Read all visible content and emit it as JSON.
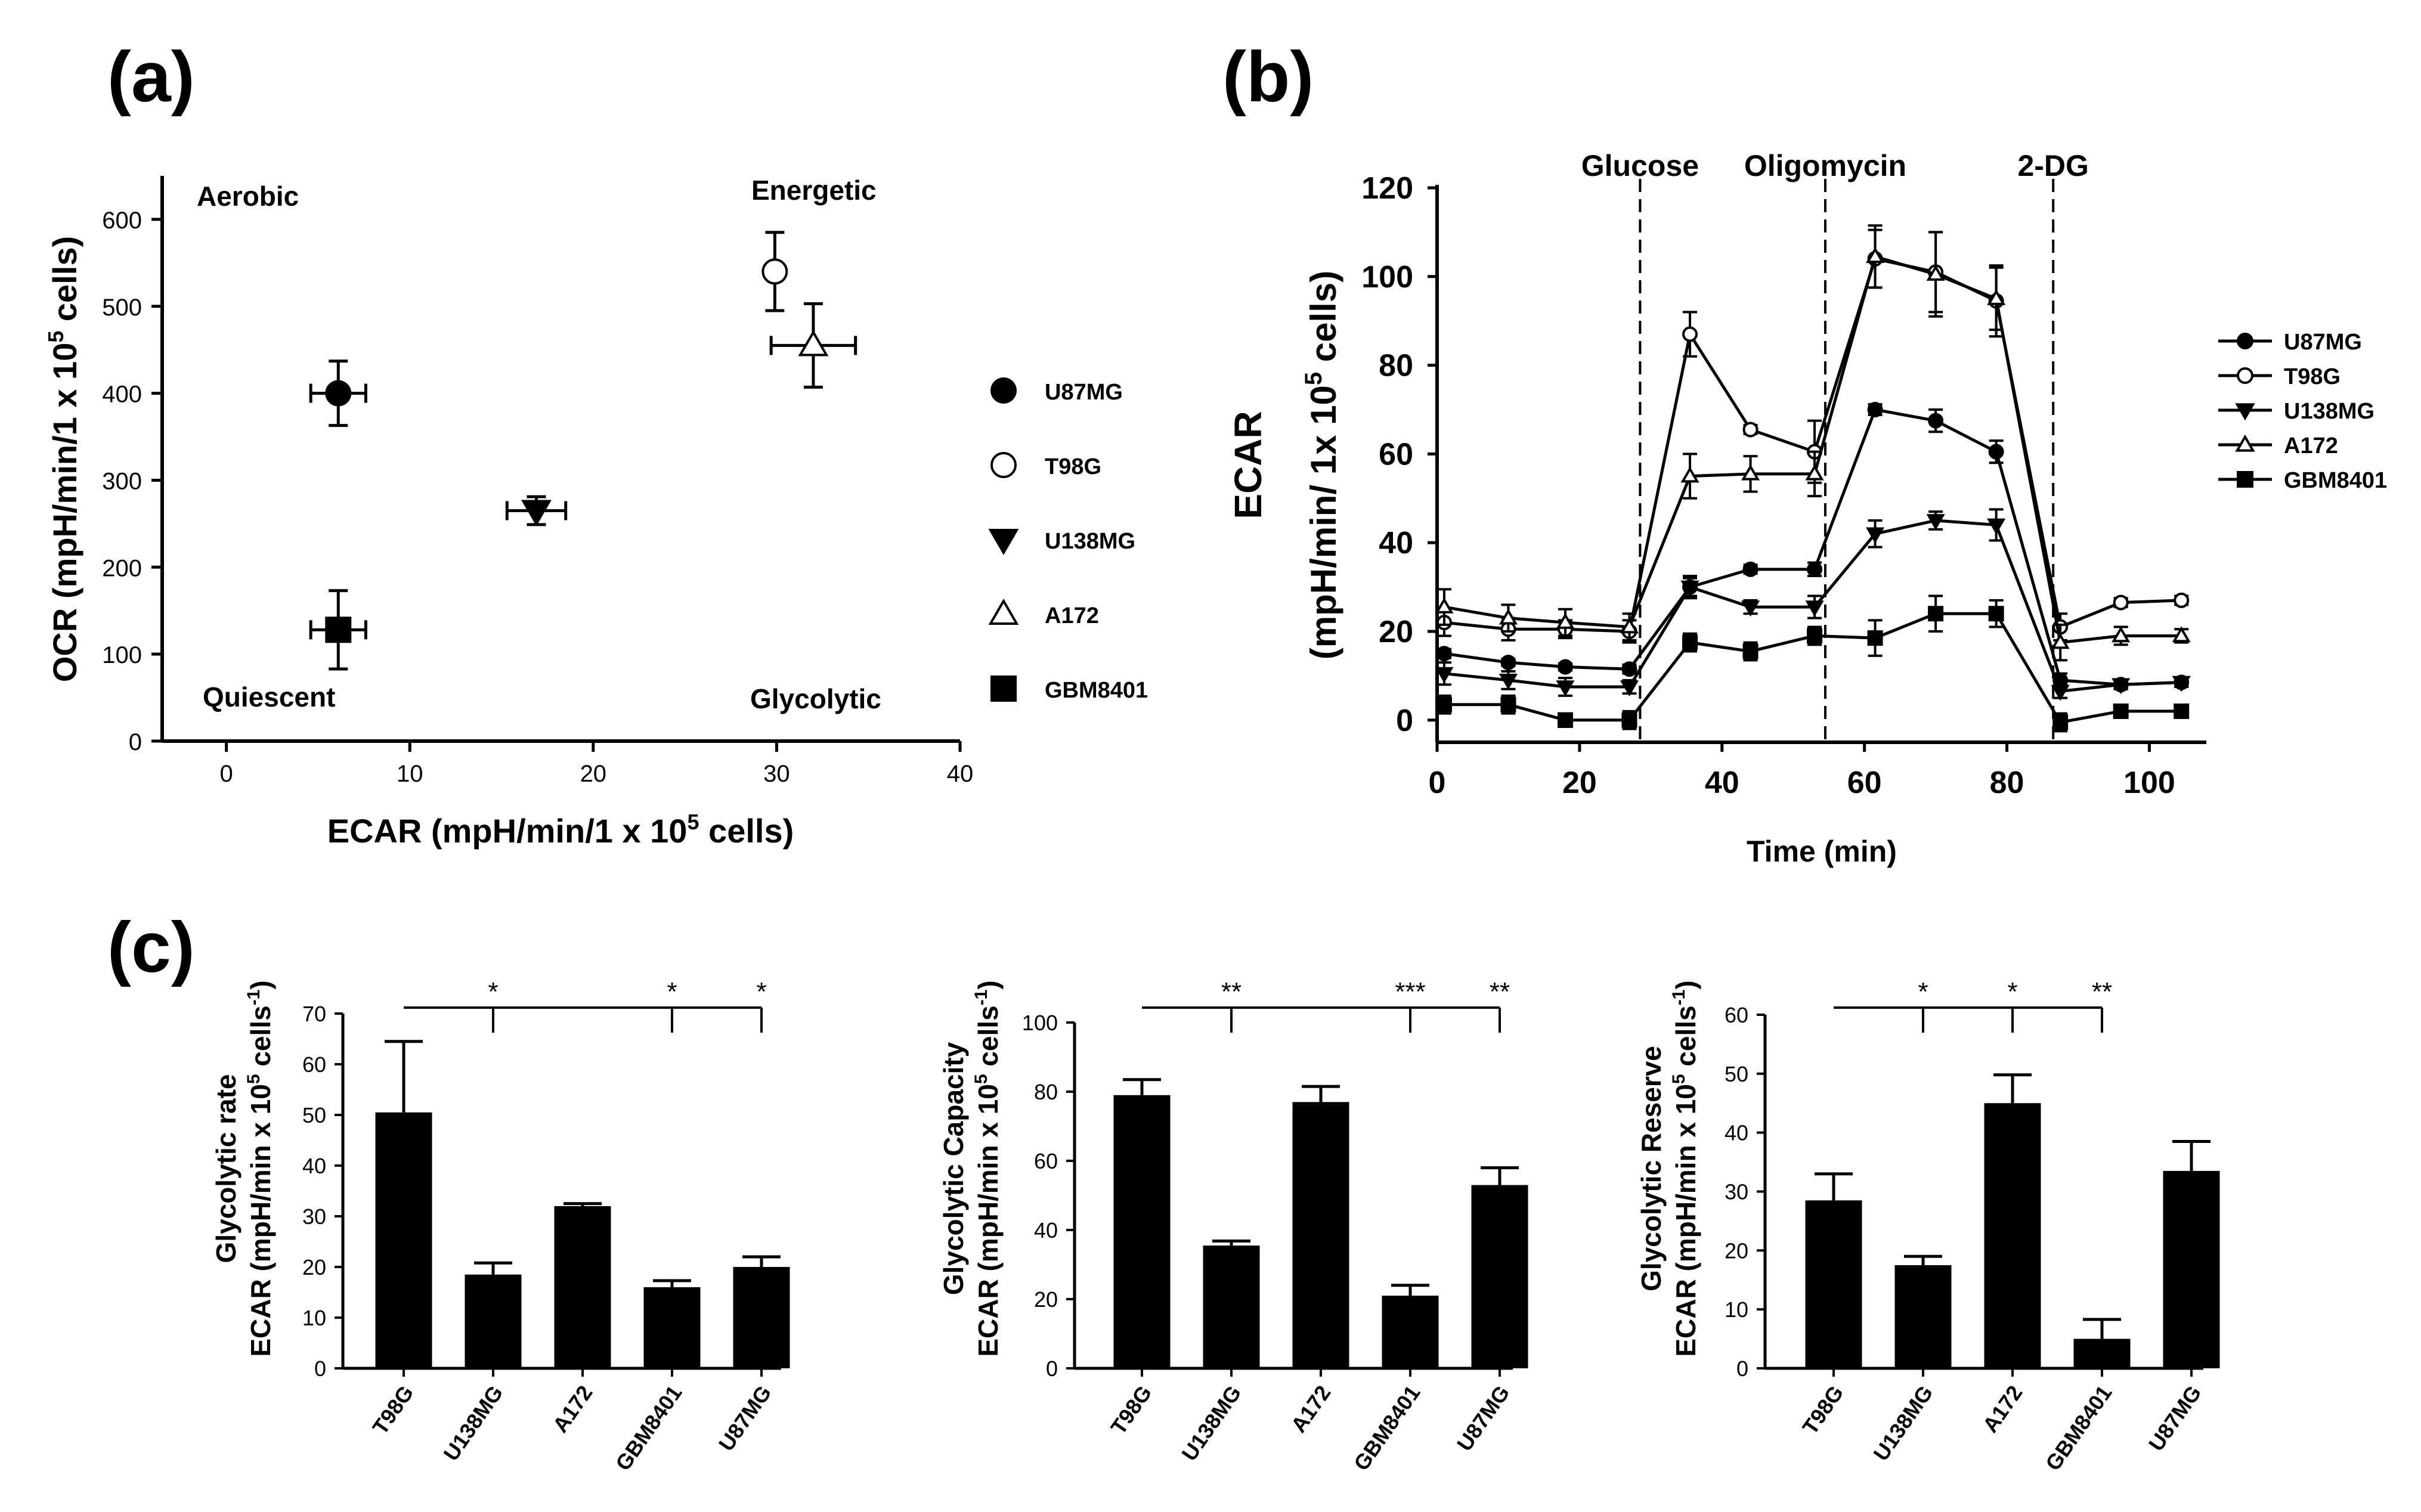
{
  "panel_labels": [
    "(a)",
    "(b)",
    "(c)"
  ],
  "chart_data": [
    {
      "id": "a",
      "type": "scatter",
      "xlabel_prefix": "ECAR (mpH/min/1 x 10",
      "xlabel_sup": "5",
      "xlabel_suffix": " cells)",
      "ylabel_prefix": "OCR (mpH/min/1 x 10",
      "ylabel_sup": "5",
      "ylabel_suffix": " cells)",
      "xlim": [
        -3.5,
        40
      ],
      "ylim": [
        0,
        650
      ],
      "xticks": [
        0,
        10,
        20,
        30,
        40
      ],
      "yticks": [
        0,
        100,
        200,
        300,
        400,
        500,
        600
      ],
      "quadrant_labels": [
        "Aerobic",
        "Energetic",
        "Quiescent",
        "Glycolytic"
      ],
      "legend": [
        {
          "name": "U87MG",
          "marker": "circle-filled"
        },
        {
          "name": "T98G",
          "marker": "circle-open"
        },
        {
          "name": "U138MG",
          "marker": "triangle-down-filled"
        },
        {
          "name": "A172",
          "marker": "triangle-up-open"
        },
        {
          "name": "GBM8401",
          "marker": "square-filled"
        }
      ],
      "points": [
        {
          "name": "U87MG",
          "x": 6.1,
          "y": 400,
          "xerr": 1.5,
          "yerr": 37,
          "marker": "circle-filled"
        },
        {
          "name": "T98G",
          "x": 29.9,
          "y": 540,
          "xerr": 0,
          "yerr": 45,
          "marker": "circle-open"
        },
        {
          "name": "U138MG",
          "x": 16.9,
          "y": 265,
          "xerr": 1.6,
          "yerr": 16,
          "marker": "triangle-down-filled"
        },
        {
          "name": "A172",
          "x": 32.0,
          "y": 455,
          "xerr": 2.3,
          "yerr": 48,
          "marker": "triangle-up-open"
        },
        {
          "name": "GBM8401",
          "x": 6.1,
          "y": 128,
          "xerr": 1.5,
          "yerr": 45,
          "marker": "square-filled"
        }
      ]
    },
    {
      "id": "b",
      "type": "line",
      "ylabel_line1": "ECAR",
      "ylabel_line2_prefix": "(mpH/min/ 1x 10",
      "ylabel_line2_sup": "5",
      "ylabel_line2_suffix": " cells)",
      "xlabel": "Time (min)",
      "xlim": [
        0,
        108
      ],
      "ylim": [
        -5,
        120
      ],
      "xticks": [
        0,
        20,
        40,
        60,
        80,
        100
      ],
      "yticks": [
        0,
        20,
        40,
        60,
        80,
        100,
        120
      ],
      "injections": [
        {
          "label": "Glucose",
          "x": 28.5
        },
        {
          "label": "Oligomycin",
          "x": 54.5
        },
        {
          "label": "2-DG",
          "x": 86.5
        }
      ],
      "x": [
        1,
        10,
        18,
        27,
        35.5,
        44,
        53,
        61.5,
        70,
        78.5,
        87.5,
        96,
        104.5
      ],
      "series": [
        {
          "name": "U87MG",
          "marker": "circle-filled",
          "values": [
            15,
            13,
            12,
            11.5,
            30,
            34,
            34,
            70,
            67.5,
            60.5,
            9,
            8,
            8.5
          ],
          "err": [
            1,
            0.8,
            0.8,
            1,
            2,
            1,
            1.5,
            1.2,
            2.5,
            2.5,
            1.5,
            1,
            1
          ]
        },
        {
          "name": "T98G",
          "marker": "circle-open",
          "values": [
            22,
            20.5,
            20.5,
            20,
            87,
            65.5,
            60.5,
            104,
            101,
            94.5,
            21,
            26.5,
            27
          ],
          "err": [
            3,
            2.5,
            2,
            2.5,
            5,
            1,
            7,
            6.5,
            9,
            8,
            3,
            1,
            1
          ]
        },
        {
          "name": "U138MG",
          "marker": "triangle-down-filled",
          "values": [
            10.5,
            9,
            7.5,
            7.5,
            30,
            25.5,
            25.5,
            42,
            45,
            44,
            6.5,
            8,
            8.5
          ],
          "err": [
            2.5,
            2,
            2,
            1.5,
            2.5,
            1.5,
            2.5,
            3,
            2,
            3.5,
            1.5,
            1,
            1
          ]
        },
        {
          "name": "A172",
          "marker": "triangle-up-open",
          "values": [
            25.5,
            23,
            22,
            21,
            55,
            55.5,
            55.5,
            104.5,
            100.5,
            95,
            17.5,
            19,
            19
          ],
          "err": [
            4,
            3,
            3,
            3,
            5,
            4,
            5,
            7,
            9.5,
            7,
            4,
            2,
            1.5
          ]
        },
        {
          "name": "GBM8401",
          "marker": "square-filled",
          "values": [
            3.5,
            3.5,
            0,
            0,
            17.5,
            15.5,
            19,
            18.5,
            24,
            24,
            -0.5,
            2,
            2
          ],
          "err": [
            2,
            2,
            1.5,
            2,
            2,
            2,
            2,
            4,
            4,
            3,
            2,
            1,
            1
          ]
        }
      ]
    },
    {
      "id": "c1",
      "type": "bar",
      "ylabel_line1": "Glycolytic rate",
      "ylabel_line2_prefix": "ECAR (mpH/min x 10",
      "ylabel_line2_sup": "5",
      "ylabel_line2_mid": " cells",
      "ylabel_line2_sup2": "-1",
      "ylabel_line2_suffix": ")",
      "ylim": [
        0,
        70
      ],
      "yticks": [
        0,
        10,
        20,
        30,
        40,
        50,
        60,
        70
      ],
      "categories": [
        "T98G",
        "U138MG",
        "A172",
        "GBM8401",
        "U87MG"
      ],
      "values": [
        50.5,
        18.5,
        32,
        16,
        20
      ],
      "errors": [
        14,
        2.3,
        0.5,
        1.3,
        2
      ],
      "significance": [
        "",
        "*",
        "",
        "*",
        "*"
      ]
    },
    {
      "id": "c2",
      "type": "bar",
      "ylabel_line1": "Glycolytic Capacity",
      "ylabel_line2_prefix": "ECAR (mpH/min x 10",
      "ylabel_line2_sup": "5",
      "ylabel_line2_mid": " cells",
      "ylabel_line2_sup2": "-1",
      "ylabel_line2_suffix": ")",
      "ylim": [
        0,
        100
      ],
      "yticks": [
        0,
        20,
        40,
        60,
        80,
        100
      ],
      "categories": [
        "T98G",
        "U138MG",
        "A172",
        "GBM8401",
        "U87MG"
      ],
      "values": [
        79,
        35.5,
        77,
        21,
        53
      ],
      "errors": [
        4.5,
        1.3,
        4.5,
        3,
        5
      ],
      "significance": [
        "",
        "**",
        "",
        "***",
        "**"
      ]
    },
    {
      "id": "c3",
      "type": "bar",
      "ylabel_line1": "Glycolytic Reserve",
      "ylabel_line2_prefix": "ECAR (mpH/min x 10",
      "ylabel_line2_sup": "5",
      "ylabel_line2_mid": " cells",
      "ylabel_line2_sup2": "-1",
      "ylabel_line2_suffix": ")",
      "ylim": [
        0,
        60
      ],
      "yticks": [
        0,
        10,
        20,
        30,
        40,
        50,
        60
      ],
      "categories": [
        "T98G",
        "U138MG",
        "A172",
        "GBM8401",
        "U87MG"
      ],
      "values": [
        28.5,
        17.5,
        45,
        5,
        33.5
      ],
      "errors": [
        4.5,
        1.5,
        4.8,
        3.3,
        5
      ],
      "significance": [
        "",
        "*",
        "*",
        "**",
        ""
      ]
    }
  ]
}
